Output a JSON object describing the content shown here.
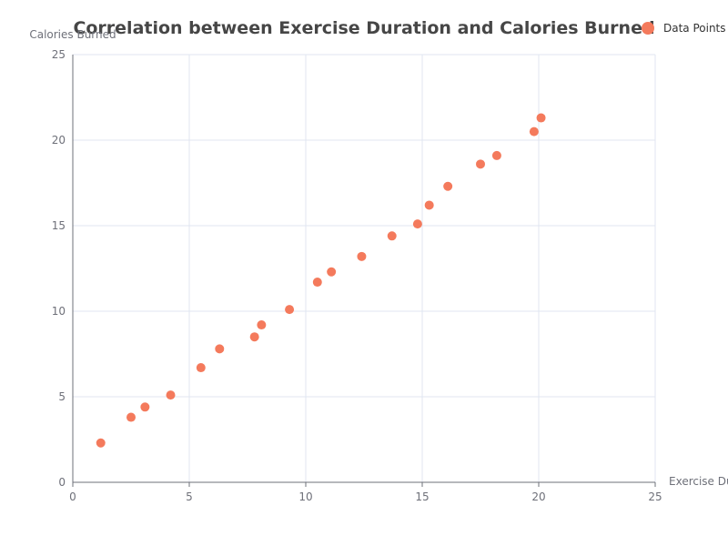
{
  "chart_data": {
    "type": "scatter",
    "title": "Correlation between Exercise Duration and Calories Burned",
    "xlabel": "Exercise Du",
    "ylabel": "Calories Burned",
    "xlim": [
      0,
      25
    ],
    "ylim": [
      0,
      25
    ],
    "x_ticks": [
      0,
      5,
      10,
      15,
      20,
      25
    ],
    "y_ticks": [
      0,
      5,
      10,
      15,
      20,
      25
    ],
    "grid": true,
    "legend_position": "top-right",
    "series": [
      {
        "name": "Data Points",
        "color": "#f47a5c",
        "points": [
          {
            "x": 1.2,
            "y": 2.3
          },
          {
            "x": 2.5,
            "y": 3.8
          },
          {
            "x": 3.1,
            "y": 4.4
          },
          {
            "x": 4.2,
            "y": 5.1
          },
          {
            "x": 5.5,
            "y": 6.7
          },
          {
            "x": 6.3,
            "y": 7.8
          },
          {
            "x": 7.8,
            "y": 8.5
          },
          {
            "x": 8.1,
            "y": 9.2
          },
          {
            "x": 9.3,
            "y": 10.1
          },
          {
            "x": 10.5,
            "y": 11.7
          },
          {
            "x": 11.1,
            "y": 12.3
          },
          {
            "x": 12.4,
            "y": 13.2
          },
          {
            "x": 13.7,
            "y": 14.4
          },
          {
            "x": 14.8,
            "y": 15.1
          },
          {
            "x": 15.3,
            "y": 16.2
          },
          {
            "x": 16.1,
            "y": 17.3
          },
          {
            "x": 17.5,
            "y": 18.6
          },
          {
            "x": 18.2,
            "y": 19.1
          },
          {
            "x": 19.8,
            "y": 20.5
          },
          {
            "x": 20.1,
            "y": 21.3
          }
        ]
      }
    ]
  }
}
